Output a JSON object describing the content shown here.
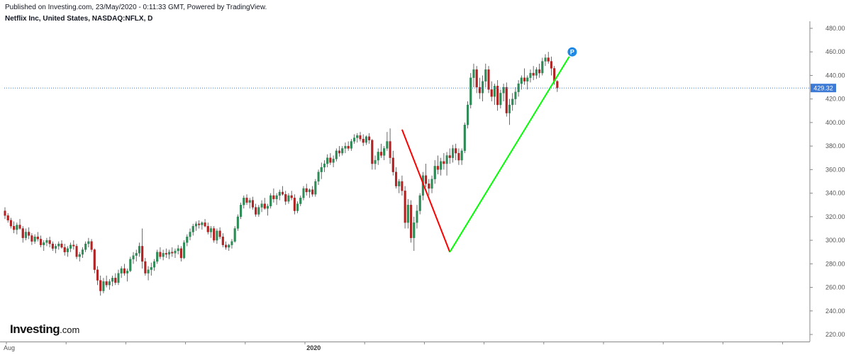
{
  "header": {
    "published": "Published on Investing.com, 23/May/2020 - 0:11:33 GMT, Powered by TradingView.",
    "symbol": "Netflix Inc, United States, NASDAQ:NFLX, D"
  },
  "logo": {
    "brand": "Investing",
    "suffix": ".com"
  },
  "chart_data": {
    "type": "candlestick",
    "title": "Netflix Inc, United States, NASDAQ:NFLX, D",
    "ylim": [
      214,
      486
    ],
    "y_ticks": [
      "480.00",
      "460.00",
      "440.00",
      "420.00",
      "400.00",
      "380.00",
      "360.00",
      "340.00",
      "320.00",
      "300.00",
      "280.00",
      "260.00",
      "240.00",
      "220.00"
    ],
    "y_tick_values": [
      480,
      460,
      440,
      420,
      400,
      380,
      360,
      340,
      320,
      300,
      280,
      260,
      240,
      220
    ],
    "x_labels": [
      {
        "text": "Aug",
        "bar": 0,
        "bold": false
      },
      {
        "text": "2020",
        "bar": 101,
        "bold": true
      }
    ],
    "grid": false,
    "colors": {
      "up": "#26a69a",
      "down": "#ef5350",
      "up_body": "#2e8b57",
      "down_body": "#b22222",
      "last_price": "#3d7ad6",
      "drop_line": "#ff0000",
      "rise_line": "#00ff00",
      "axis": "#888888"
    },
    "last_price": {
      "value": 429.32,
      "label": "429.32"
    },
    "lines": [
      {
        "name": "drop",
        "from": {
          "bar": 133,
          "price": 394
        },
        "to": {
          "bar": 149,
          "price": 290
        },
        "color": "#ff0000"
      },
      {
        "name": "rise",
        "from": {
          "bar": 149,
          "price": 290
        },
        "to": {
          "bar": 189,
          "price": 456
        },
        "color": "#00ff00"
      }
    ],
    "marker": {
      "label": "P",
      "bar": 190,
      "price": 460,
      "color": "#1e88e5"
    },
    "bars": [
      [
        325,
        328,
        318,
        321
      ],
      [
        321,
        323,
        315,
        317
      ],
      [
        317,
        319,
        310,
        312
      ],
      [
        312,
        316,
        306,
        309
      ],
      [
        309,
        315,
        305,
        313
      ],
      [
        313,
        318,
        309,
        310
      ],
      [
        310,
        312,
        298,
        302
      ],
      [
        302,
        310,
        300,
        307
      ],
      [
        307,
        311,
        301,
        304
      ],
      [
        304,
        306,
        296,
        299
      ],
      [
        299,
        305,
        297,
        303
      ],
      [
        303,
        307,
        299,
        301
      ],
      [
        301,
        304,
        294,
        296
      ],
      [
        296,
        300,
        291,
        298
      ],
      [
        298,
        302,
        295,
        300
      ],
      [
        300,
        303,
        294,
        297
      ],
      [
        297,
        299,
        291,
        293
      ],
      [
        293,
        297,
        289,
        295
      ],
      [
        295,
        299,
        292,
        297
      ],
      [
        297,
        300,
        293,
        294
      ],
      [
        294,
        297,
        287,
        290
      ],
      [
        290,
        295,
        286,
        293
      ],
      [
        293,
        298,
        290,
        296
      ],
      [
        296,
        300,
        292,
        295
      ],
      [
        295,
        297,
        284,
        286
      ],
      [
        286,
        290,
        282,
        288
      ],
      [
        288,
        294,
        285,
        292
      ],
      [
        292,
        299,
        290,
        297
      ],
      [
        297,
        302,
        294,
        299
      ],
      [
        299,
        301,
        290,
        292
      ],
      [
        292,
        293,
        272,
        275
      ],
      [
        275,
        278,
        262,
        266
      ],
      [
        266,
        270,
        253,
        257
      ],
      [
        257,
        268,
        255,
        265
      ],
      [
        265,
        270,
        260,
        262
      ],
      [
        262,
        267,
        258,
        265
      ],
      [
        265,
        270,
        261,
        268
      ],
      [
        268,
        272,
        262,
        264
      ],
      [
        264,
        275,
        262,
        272
      ],
      [
        272,
        278,
        268,
        276
      ],
      [
        276,
        280,
        270,
        272
      ],
      [
        272,
        276,
        265,
        274
      ],
      [
        274,
        286,
        273,
        284
      ],
      [
        284,
        290,
        280,
        287
      ],
      [
        287,
        292,
        282,
        289
      ],
      [
        289,
        298,
        286,
        295
      ],
      [
        295,
        310,
        276,
        282
      ],
      [
        282,
        285,
        270,
        272
      ],
      [
        272,
        278,
        266,
        275
      ],
      [
        275,
        281,
        270,
        277
      ],
      [
        277,
        284,
        274,
        282
      ],
      [
        282,
        292,
        280,
        290
      ],
      [
        290,
        294,
        284,
        286
      ],
      [
        286,
        292,
        283,
        289
      ],
      [
        289,
        293,
        285,
        288
      ],
      [
        288,
        292,
        284,
        290
      ],
      [
        290,
        294,
        286,
        289
      ],
      [
        289,
        293,
        285,
        291
      ],
      [
        291,
        296,
        288,
        293
      ],
      [
        293,
        295,
        282,
        285
      ],
      [
        285,
        300,
        284,
        298
      ],
      [
        298,
        305,
        295,
        303
      ],
      [
        303,
        310,
        300,
        307
      ],
      [
        307,
        314,
        304,
        312
      ],
      [
        312,
        316,
        308,
        314
      ],
      [
        314,
        317,
        310,
        313
      ],
      [
        313,
        316,
        309,
        315
      ],
      [
        315,
        318,
        311,
        312
      ],
      [
        312,
        315,
        305,
        307
      ],
      [
        307,
        312,
        302,
        310
      ],
      [
        310,
        312,
        298,
        300
      ],
      [
        300,
        310,
        297,
        308
      ],
      [
        308,
        311,
        301,
        303
      ],
      [
        303,
        306,
        294,
        296
      ],
      [
        296,
        299,
        292,
        294
      ],
      [
        294,
        297,
        291,
        296
      ],
      [
        296,
        301,
        293,
        299
      ],
      [
        299,
        312,
        298,
        310
      ],
      [
        310,
        322,
        308,
        320
      ],
      [
        320,
        332,
        318,
        330
      ],
      [
        330,
        338,
        327,
        336
      ],
      [
        336,
        339,
        330,
        332
      ],
      [
        332,
        336,
        327,
        334
      ],
      [
        334,
        337,
        326,
        328
      ],
      [
        328,
        331,
        320,
        322
      ],
      [
        322,
        330,
        320,
        328
      ],
      [
        328,
        334,
        324,
        331
      ],
      [
        331,
        336,
        326,
        327
      ],
      [
        327,
        331,
        321,
        329
      ],
      [
        329,
        340,
        327,
        338
      ],
      [
        338,
        344,
        332,
        335
      ],
      [
        335,
        340,
        330,
        338
      ],
      [
        338,
        343,
        334,
        341
      ],
      [
        341,
        346,
        338,
        339
      ],
      [
        339,
        342,
        330,
        333
      ],
      [
        333,
        340,
        331,
        338
      ],
      [
        338,
        342,
        334,
        336
      ],
      [
        336,
        339,
        322,
        325
      ],
      [
        325,
        333,
        323,
        331
      ],
      [
        331,
        338,
        329,
        336
      ],
      [
        336,
        346,
        334,
        344
      ],
      [
        344,
        348,
        338,
        341
      ],
      [
        341,
        344,
        336,
        343
      ],
      [
        343,
        346,
        337,
        339
      ],
      [
        339,
        352,
        337,
        350
      ],
      [
        350,
        360,
        347,
        358
      ],
      [
        358,
        366,
        352,
        362
      ],
      [
        362,
        368,
        358,
        365
      ],
      [
        365,
        373,
        362,
        370
      ],
      [
        370,
        374,
        364,
        366
      ],
      [
        366,
        372,
        362,
        369
      ],
      [
        369,
        378,
        367,
        376
      ],
      [
        376,
        380,
        371,
        374
      ],
      [
        374,
        380,
        372,
        378
      ],
      [
        378,
        383,
        374,
        380
      ],
      [
        380,
        384,
        376,
        378
      ],
      [
        378,
        386,
        376,
        384
      ],
      [
        384,
        390,
        382,
        387
      ],
      [
        387,
        391,
        383,
        389
      ],
      [
        389,
        392,
        384,
        386
      ],
      [
        386,
        390,
        380,
        383
      ],
      [
        383,
        389,
        381,
        388
      ],
      [
        388,
        391,
        382,
        385
      ],
      [
        385,
        386,
        360,
        365
      ],
      [
        365,
        372,
        360,
        368
      ],
      [
        368,
        378,
        364,
        375
      ],
      [
        375,
        382,
        370,
        372
      ],
      [
        372,
        380,
        368,
        378
      ],
      [
        378,
        392,
        376,
        384
      ],
      [
        384,
        395,
        365,
        370
      ],
      [
        370,
        376,
        355,
        358
      ],
      [
        358,
        362,
        344,
        346
      ],
      [
        346,
        352,
        340,
        350
      ],
      [
        350,
        355,
        338,
        342
      ],
      [
        342,
        346,
        310,
        315
      ],
      [
        315,
        335,
        310,
        330
      ],
      [
        330,
        334,
        298,
        302
      ],
      [
        302,
        320,
        291,
        315
      ],
      [
        315,
        330,
        310,
        325
      ],
      [
        325,
        340,
        322,
        338
      ],
      [
        338,
        358,
        334,
        355
      ],
      [
        355,
        365,
        345,
        348
      ],
      [
        348,
        352,
        338,
        344
      ],
      [
        344,
        355,
        340,
        352
      ],
      [
        352,
        368,
        348,
        363
      ],
      [
        363,
        372,
        356,
        360
      ],
      [
        360,
        370,
        355,
        367
      ],
      [
        367,
        374,
        360,
        365
      ],
      [
        365,
        375,
        355,
        372
      ],
      [
        372,
        378,
        365,
        370
      ],
      [
        370,
        381,
        366,
        378
      ],
      [
        378,
        382,
        368,
        374
      ],
      [
        374,
        378,
        364,
        368
      ],
      [
        368,
        378,
        364,
        376
      ],
      [
        376,
        400,
        374,
        398
      ],
      [
        398,
        418,
        395,
        415
      ],
      [
        415,
        442,
        412,
        438
      ],
      [
        438,
        450,
        430,
        445
      ],
      [
        445,
        448,
        425,
        430
      ],
      [
        430,
        438,
        420,
        425
      ],
      [
        425,
        440,
        418,
        435
      ],
      [
        435,
        450,
        430,
        445
      ],
      [
        445,
        448,
        425,
        428
      ],
      [
        428,
        435,
        418,
        422
      ],
      [
        422,
        433,
        415,
        431
      ],
      [
        431,
        436,
        410,
        415
      ],
      [
        415,
        428,
        412,
        425
      ],
      [
        425,
        433,
        418,
        430
      ],
      [
        430,
        434,
        405,
        408
      ],
      [
        408,
        420,
        398,
        415
      ],
      [
        415,
        425,
        410,
        420
      ],
      [
        420,
        430,
        415,
        426
      ],
      [
        426,
        436,
        422,
        433
      ],
      [
        433,
        440,
        428,
        438
      ],
      [
        438,
        446,
        432,
        435
      ],
      [
        435,
        440,
        428,
        438
      ],
      [
        438,
        445,
        434,
        442
      ],
      [
        442,
        448,
        436,
        440
      ],
      [
        440,
        447,
        437,
        445
      ],
      [
        445,
        450,
        438,
        442
      ],
      [
        442,
        455,
        440,
        452
      ],
      [
        452,
        458,
        448,
        455
      ],
      [
        455,
        460,
        450,
        452
      ],
      [
        452,
        456,
        440,
        446
      ],
      [
        446,
        448,
        432,
        435
      ],
      [
        435,
        436,
        426,
        429.32
      ]
    ]
  }
}
